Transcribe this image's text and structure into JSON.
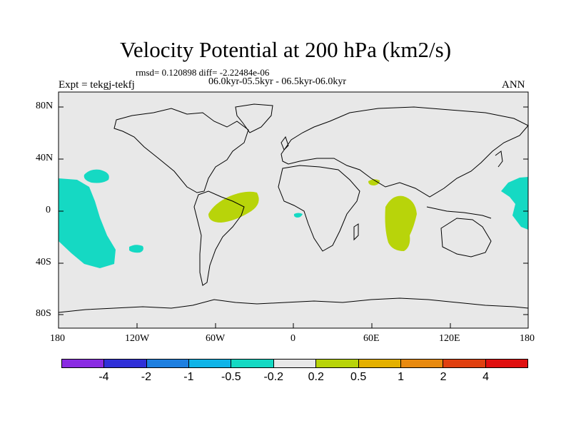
{
  "title": "Velocity Potential at 200 hPa (km2/s)",
  "stats": "rmsd= 0.120898 diff= -2.22484e-06",
  "periods": "06.0kyr-05.5kyr - 06.5kyr-06.0kyr",
  "experiment": "Expt = tekgj-tekfj",
  "season": "ANN",
  "lat_labels": [
    "80N",
    "40N",
    "0",
    "40S",
    "80S"
  ],
  "lon_labels": [
    "180",
    "120W",
    "60W",
    "0",
    "60E",
    "120E",
    "180"
  ],
  "colorbar": {
    "labels": [
      "-4",
      "-2",
      "-1",
      "-0.5",
      "-0.2",
      "0.2",
      "0.5",
      "1",
      "2",
      "4"
    ],
    "colors": [
      "#8a2be2",
      "#3030d8",
      "#1e7fe0",
      "#10b4e8",
      "#15d9c3",
      "#e8e8e8",
      "#b8d40a",
      "#e4b000",
      "#e88a10",
      "#e04010",
      "#e01010"
    ]
  },
  "map_colors": {
    "background": "#e8e8e8",
    "negative": "#15d9c3",
    "positive": "#b8d40a",
    "coast": "#000000"
  }
}
